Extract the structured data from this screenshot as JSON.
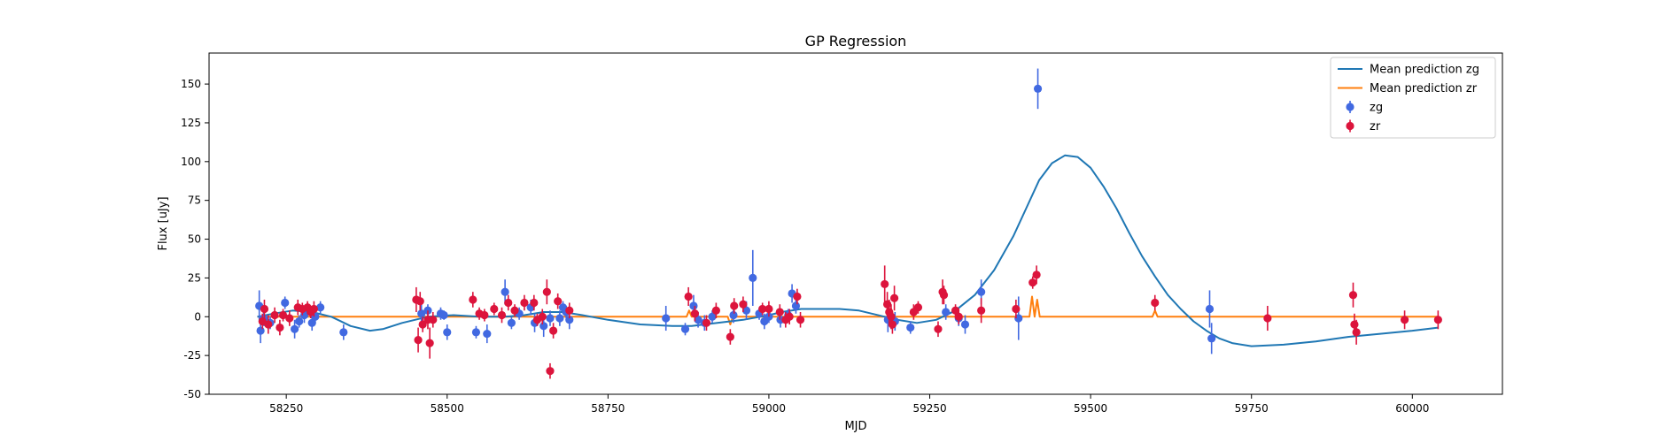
{
  "chart_data": {
    "type": "scatter",
    "title": "GP Regression",
    "xlabel": "MJD",
    "ylabel": "Flux [uJy]",
    "xlim": [
      58130,
      60140
    ],
    "ylim": [
      -50,
      170
    ],
    "xticks": [
      58250,
      58500,
      58750,
      59000,
      59250,
      59500,
      59750,
      60000
    ],
    "yticks": [
      -50,
      -25,
      0,
      25,
      50,
      75,
      100,
      125,
      150
    ],
    "grid": false,
    "legend_position": "top-right",
    "colors": {
      "zg_line": "#1f77b4",
      "zr_line": "#ff7f0e",
      "zg_points": "#4169e1",
      "zr_points": "#dc143c"
    },
    "series": [
      {
        "name": "Mean prediction zg",
        "kind": "line",
        "x": [
          58205,
          58230,
          58260,
          58290,
          58320,
          58350,
          58380,
          58400,
          58430,
          58470,
          58510,
          58550,
          58590,
          58620,
          58650,
          58680,
          58710,
          58750,
          58800,
          58850,
          58880,
          58920,
          58960,
          59000,
          59020,
          59050,
          59080,
          59110,
          59140,
          59160,
          59180,
          59200,
          59230,
          59260,
          59290,
          59320,
          59350,
          59380,
          59400,
          59420,
          59440,
          59460,
          59480,
          59500,
          59520,
          59540,
          59560,
          59580,
          59600,
          59620,
          59640,
          59660,
          59680,
          59700,
          59720,
          59750,
          59800,
          59850,
          59900,
          59950,
          60000,
          60040
        ],
        "y": [
          0,
          2,
          4,
          3,
          0,
          -6,
          -9,
          -8,
          -4,
          0,
          1,
          0,
          0,
          1,
          3,
          3,
          1,
          -2,
          -5,
          -6,
          -6,
          -4,
          -2,
          1,
          3,
          5,
          5,
          5,
          4,
          2,
          0,
          -2,
          -4,
          -2,
          4,
          14,
          30,
          52,
          70,
          88,
          99,
          104,
          103,
          96,
          84,
          70,
          54,
          39,
          26,
          14,
          5,
          -3,
          -9,
          -14,
          -17,
          -19,
          -18,
          -16,
          -13,
          -11,
          -9,
          -7
        ]
      },
      {
        "name": "Mean prediction zr",
        "kind": "line",
        "x": [
          58205,
          58872,
          58876,
          58880,
          58936,
          58940,
          58944,
          59186,
          59190,
          59194,
          59405,
          59409,
          59413,
          59417,
          59421,
          59425,
          59596,
          59600,
          59604,
          60040
        ],
        "y": [
          0,
          0,
          4,
          0,
          0,
          -5,
          0,
          0,
          5,
          0,
          0,
          13,
          0,
          11,
          0,
          0,
          0,
          4,
          0,
          0
        ]
      },
      {
        "name": "zg",
        "kind": "errorbar",
        "points": [
          [
            58208,
            7,
            10
          ],
          [
            58210,
            -9,
            8
          ],
          [
            58215,
            -1,
            5
          ],
          [
            58225,
            -4,
            4
          ],
          [
            58248,
            9,
            4
          ],
          [
            58263,
            -8,
            6
          ],
          [
            58270,
            -3,
            4
          ],
          [
            58278,
            1,
            5
          ],
          [
            58290,
            -4,
            5
          ],
          [
            58295,
            0,
            4
          ],
          [
            58303,
            6,
            4
          ],
          [
            58339,
            -10,
            5
          ],
          [
            58460,
            2,
            6
          ],
          [
            58470,
            4,
            4
          ],
          [
            58490,
            2,
            4
          ],
          [
            58495,
            1,
            3
          ],
          [
            58500,
            -10,
            5
          ],
          [
            58545,
            -10,
            4
          ],
          [
            58562,
            -11,
            6
          ],
          [
            58590,
            16,
            8
          ],
          [
            58600,
            -4,
            4
          ],
          [
            58612,
            2,
            4
          ],
          [
            58630,
            6,
            5
          ],
          [
            58636,
            -4,
            6
          ],
          [
            58650,
            -6,
            7
          ],
          [
            58660,
            -1,
            5
          ],
          [
            58675,
            -1,
            5
          ],
          [
            58680,
            6,
            4
          ],
          [
            58685,
            3,
            4
          ],
          [
            58690,
            -2,
            6
          ],
          [
            58840,
            -1,
            8
          ],
          [
            58870,
            -8,
            4
          ],
          [
            58883,
            7,
            7
          ],
          [
            58890,
            -2,
            5
          ],
          [
            58900,
            -4,
            5
          ],
          [
            58912,
            0,
            4
          ],
          [
            58945,
            1,
            5
          ],
          [
            58965,
            4,
            6
          ],
          [
            58975,
            25,
            18
          ],
          [
            58985,
            2,
            4
          ],
          [
            58993,
            -3,
            5
          ],
          [
            59000,
            0,
            4
          ],
          [
            59018,
            -2,
            5
          ],
          [
            59030,
            1,
            4
          ],
          [
            59036,
            15,
            6
          ],
          [
            59042,
            7,
            5
          ],
          [
            59185,
            -2,
            8
          ],
          [
            59196,
            -3,
            6
          ],
          [
            59220,
            -7,
            4
          ],
          [
            59275,
            3,
            5
          ],
          [
            59295,
            -1,
            5
          ],
          [
            59305,
            -5,
            6
          ],
          [
            59330,
            16,
            8
          ],
          [
            59388,
            -1,
            14
          ],
          [
            59418,
            147,
            13
          ],
          [
            59685,
            5,
            12
          ],
          [
            59688,
            -14,
            10
          ]
        ]
      },
      {
        "name": "zr",
        "kind": "errorbar",
        "points": [
          [
            58213,
            -3,
            5
          ],
          [
            58216,
            5,
            6
          ],
          [
            58222,
            -5,
            6
          ],
          [
            58232,
            1,
            5
          ],
          [
            58240,
            -7,
            5
          ],
          [
            58245,
            1,
            4
          ],
          [
            58255,
            -1,
            5
          ],
          [
            58268,
            6,
            5
          ],
          [
            58275,
            5,
            4
          ],
          [
            58283,
            6,
            4
          ],
          [
            58288,
            3,
            4
          ],
          [
            58293,
            5,
            5
          ],
          [
            58452,
            11,
            8
          ],
          [
            58455,
            -15,
            8
          ],
          [
            58458,
            10,
            6
          ],
          [
            58462,
            -5,
            5
          ],
          [
            58470,
            -2,
            6
          ],
          [
            58473,
            -17,
            10
          ],
          [
            58478,
            -2,
            5
          ],
          [
            58540,
            11,
            5
          ],
          [
            58550,
            2,
            4
          ],
          [
            58558,
            1,
            4
          ],
          [
            58573,
            5,
            4
          ],
          [
            58585,
            1,
            5
          ],
          [
            58595,
            9,
            5
          ],
          [
            58605,
            4,
            4
          ],
          [
            58620,
            9,
            5
          ],
          [
            58635,
            9,
            5
          ],
          [
            58640,
            -2,
            4
          ],
          [
            58648,
            0,
            5
          ],
          [
            58655,
            16,
            8
          ],
          [
            58660,
            -35,
            5
          ],
          [
            58665,
            -9,
            5
          ],
          [
            58672,
            10,
            5
          ],
          [
            58690,
            4,
            5
          ],
          [
            58875,
            13,
            6
          ],
          [
            58885,
            2,
            5
          ],
          [
            58903,
            -4,
            5
          ],
          [
            58918,
            4,
            5
          ],
          [
            58940,
            -13,
            5
          ],
          [
            58946,
            7,
            5
          ],
          [
            58960,
            8,
            5
          ],
          [
            58990,
            5,
            4
          ],
          [
            59000,
            5,
            5
          ],
          [
            59017,
            3,
            5
          ],
          [
            59026,
            -2,
            5
          ],
          [
            59032,
            0,
            5
          ],
          [
            59044,
            13,
            5
          ],
          [
            59049,
            -2,
            5
          ],
          [
            59180,
            21,
            12
          ],
          [
            59184,
            8,
            8
          ],
          [
            59187,
            3,
            8
          ],
          [
            59190,
            0,
            8
          ],
          [
            59192,
            -5,
            6
          ],
          [
            59195,
            12,
            8
          ],
          [
            59225,
            3,
            5
          ],
          [
            59232,
            6,
            4
          ],
          [
            59263,
            -8,
            5
          ],
          [
            59270,
            16,
            8
          ],
          [
            59272,
            14,
            6
          ],
          [
            59290,
            4,
            4
          ],
          [
            59295,
            0,
            5
          ],
          [
            59330,
            4,
            8
          ],
          [
            59384,
            5,
            6
          ],
          [
            59410,
            22,
            4
          ],
          [
            59416,
            27,
            6
          ],
          [
            59600,
            9,
            5
          ],
          [
            59775,
            -1,
            8
          ],
          [
            59908,
            14,
            8
          ],
          [
            59910,
            -5,
            7
          ],
          [
            59913,
            -10,
            8
          ],
          [
            59988,
            -2,
            6
          ],
          [
            60040,
            -2,
            6
          ]
        ]
      }
    ]
  }
}
